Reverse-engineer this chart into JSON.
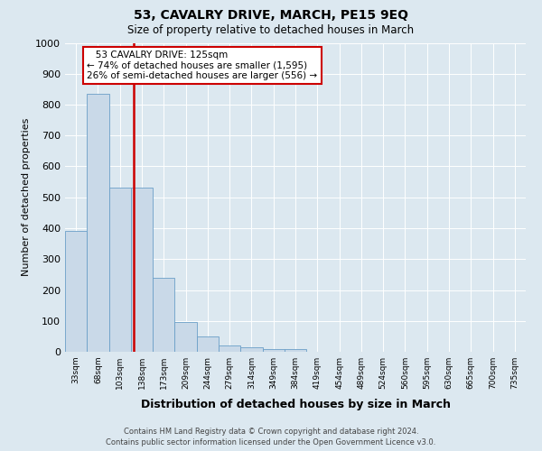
{
  "title": "53, CAVALRY DRIVE, MARCH, PE15 9EQ",
  "subtitle": "Size of property relative to detached houses in March",
  "xlabel": "Distribution of detached houses by size in March",
  "ylabel": "Number of detached properties",
  "bin_labels": [
    "33sqm",
    "68sqm",
    "103sqm",
    "138sqm",
    "173sqm",
    "209sqm",
    "244sqm",
    "279sqm",
    "314sqm",
    "349sqm",
    "384sqm",
    "419sqm",
    "454sqm",
    "489sqm",
    "524sqm",
    "560sqm",
    "595sqm",
    "630sqm",
    "665sqm",
    "700sqm",
    "735sqm"
  ],
  "bar_heights": [
    390,
    835,
    530,
    530,
    240,
    95,
    50,
    20,
    15,
    10,
    10,
    0,
    0,
    0,
    0,
    0,
    0,
    0,
    0,
    0,
    0
  ],
  "bar_color": "#c9d9e8",
  "bar_edge_color": "#6a9fc8",
  "ylim": [
    0,
    1000
  ],
  "yticks": [
    0,
    100,
    200,
    300,
    400,
    500,
    600,
    700,
    800,
    900,
    1000
  ],
  "vline_color": "#cc0000",
  "annotation_line1": "   53 CAVALRY DRIVE: 125sqm",
  "annotation_line2": "← 74% of detached houses are smaller (1,595)",
  "annotation_line3": "26% of semi-detached houses are larger (556) →",
  "annotation_box_color": "#ffffff",
  "annotation_box_edge_color": "#cc0000",
  "footer_text": "Contains HM Land Registry data © Crown copyright and database right 2024.\nContains public sector information licensed under the Open Government Licence v3.0.",
  "background_color": "#dce8f0",
  "plot_bg_color": "#dce8f0",
  "title_fontsize": 10,
  "subtitle_fontsize": 8.5
}
